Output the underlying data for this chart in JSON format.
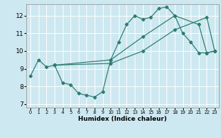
{
  "title": "",
  "xlabel": "Humidex (Indice chaleur)",
  "bg_color": "#cde8f0",
  "line_color": "#2d7d6e",
  "grid_color": "#ffffff",
  "xlim": [
    -0.5,
    23.5
  ],
  "ylim": [
    6.8,
    12.65
  ],
  "yticks": [
    7,
    8,
    9,
    10,
    11,
    12
  ],
  "xticks": [
    0,
    1,
    2,
    3,
    4,
    5,
    6,
    7,
    8,
    9,
    10,
    11,
    12,
    13,
    14,
    15,
    16,
    17,
    18,
    19,
    20,
    21,
    22,
    23
  ],
  "series": [
    {
      "x": [
        0,
        1,
        2,
        3,
        4,
        5,
        6,
        7,
        8,
        9,
        10,
        11,
        12,
        13,
        14,
        15,
        16,
        17,
        18,
        19,
        20,
        21,
        22,
        23
      ],
      "y": [
        8.6,
        9.5,
        9.1,
        9.2,
        8.2,
        8.1,
        7.6,
        7.5,
        7.4,
        7.7,
        9.5,
        10.5,
        11.5,
        12.0,
        11.8,
        11.9,
        12.4,
        12.5,
        12.0,
        11.0,
        10.5,
        9.9,
        9.9,
        10.0
      ]
    },
    {
      "x": [
        3,
        10,
        14,
        18,
        21,
        22,
        23
      ],
      "y": [
        9.2,
        9.5,
        10.8,
        12.0,
        11.5,
        9.9,
        10.0
      ]
    },
    {
      "x": [
        3,
        10,
        14,
        18,
        22,
        23
      ],
      "y": [
        9.2,
        9.3,
        10.0,
        11.2,
        11.9,
        10.0
      ]
    }
  ]
}
